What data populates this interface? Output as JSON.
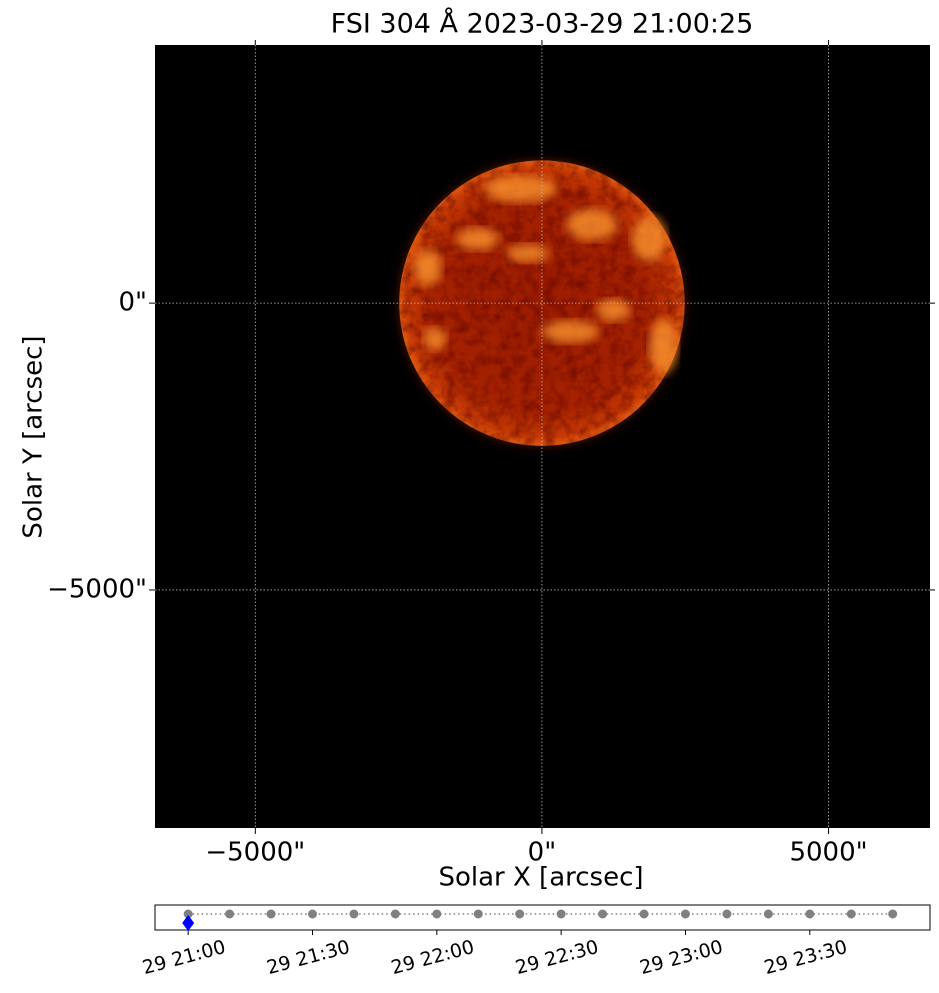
{
  "chart_data": [
    {
      "type": "image",
      "title": "FSI 304 Å 2023-03-29 21:00:25",
      "xlabel": "Solar X [arcsec]",
      "ylabel": "Solar Y [arcsec]",
      "xlim": [
        -6750,
        6770
      ],
      "ylim": [
        -9150,
        4500
      ],
      "xticks": [
        {
          "value": -5000,
          "label": "−5000\""
        },
        {
          "value": 0,
          "label": "0\""
        },
        {
          "value": 5000,
          "label": "5000\""
        }
      ],
      "yticks": [
        {
          "value": -5000,
          "label": "−5000\""
        },
        {
          "value": 0,
          "label": "0\""
        }
      ],
      "grid": true,
      "disk": {
        "center": [
          0,
          0
        ],
        "radius": 2490
      }
    },
    {
      "type": "timeline",
      "xlim": [
        "29 20:52",
        "29 23:59"
      ],
      "xticks": [
        "29 21:00",
        "29 21:30",
        "29 22:00",
        "29 22:30",
        "29 23:00",
        "29 23:30"
      ],
      "series": [
        {
          "color": "#808080",
          "marker": "circle",
          "linestyle": "dotted",
          "x": [
            "29 21:00",
            "29 21:10",
            "29 21:20",
            "29 21:30",
            "29 21:40",
            "29 21:50",
            "29 22:00",
            "29 22:10",
            "29 22:20",
            "29 22:30",
            "29 22:40",
            "29 22:50",
            "29 23:00",
            "29 23:10",
            "29 23:20",
            "29 23:30",
            "29 23:40",
            "29 23:50"
          ]
        },
        {
          "color": "#0000ff",
          "marker": "diamond",
          "x": [
            "29 21:00"
          ]
        }
      ]
    }
  ]
}
